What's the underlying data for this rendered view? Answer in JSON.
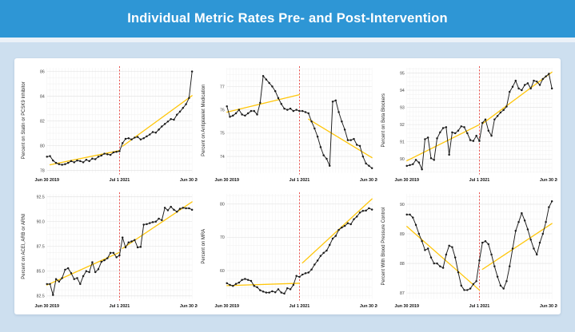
{
  "header": {
    "title": "Individual Metric Rates Pre- and Post-Intervention"
  },
  "colors": {
    "header_blue": "#2E96D5",
    "page_background": "#CDDFEF",
    "panel_background": "#FFFFFF",
    "data_line": "#1A1A1A",
    "trend_line": "#FFC60A",
    "intervention_line": "#E8433E",
    "grid_minor": "#EFEFEF",
    "grid_major": "#E0E0E0"
  },
  "chart_data": [
    {
      "type": "line",
      "name": "statin-pcsk9",
      "ylabel": "Percent on Statin or PCSK9 Inhibitor",
      "ylim": [
        77.8,
        86.3
      ],
      "yticks": [
        {
          "v": 78,
          "label": "78"
        },
        {
          "v": 80,
          "label": "80"
        },
        {
          "v": 82,
          "label": "82"
        },
        {
          "v": 84,
          "label": "84"
        },
        {
          "v": 86,
          "label": "86"
        }
      ],
      "xticks": [
        {
          "i": 0,
          "label": "Jun 30 2019"
        },
        {
          "i": 24,
          "label": "Jul 1 2021"
        },
        {
          "i": 48,
          "label": "Jun 30 2023"
        }
      ],
      "vline_index": 24,
      "values": [
        79.1,
        79.15,
        78.8,
        78.6,
        78.5,
        78.45,
        78.5,
        78.6,
        78.75,
        78.65,
        78.8,
        78.75,
        78.65,
        78.85,
        78.75,
        78.95,
        78.9,
        79.1,
        79.2,
        79.35,
        79.3,
        79.25,
        79.45,
        79.5,
        79.55,
        80.2,
        80.55,
        80.6,
        80.5,
        80.65,
        80.7,
        80.5,
        80.6,
        80.75,
        80.9,
        81.1,
        81.05,
        81.3,
        81.55,
        81.75,
        81.95,
        82.15,
        82.1,
        82.5,
        82.75,
        83.05,
        83.35,
        83.85,
        86.0
      ],
      "trend_pre": [
        1,
        78.45,
        24,
        79.6
      ],
      "trend_post": [
        25,
        79.95,
        48,
        84.05
      ]
    },
    {
      "type": "line",
      "name": "antiplatelet",
      "ylabel": "Percent on Antiplatelet Medication",
      "ylim": [
        73.3,
        77.8
      ],
      "yticks": [
        {
          "v": 74,
          "label": "74"
        },
        {
          "v": 75,
          "label": "75"
        },
        {
          "v": 76,
          "label": "76"
        },
        {
          "v": 77,
          "label": "77"
        }
      ],
      "xticks": [
        {
          "i": 0,
          "label": "Jun 30 2019"
        },
        {
          "i": 24,
          "label": "Jul 1 2021"
        },
        {
          "i": 48,
          "label": "Jun 30 2023"
        }
      ],
      "vline_index": 24,
      "values": [
        76.15,
        75.7,
        75.75,
        75.85,
        76.0,
        75.8,
        75.75,
        75.85,
        75.95,
        75.95,
        75.8,
        76.3,
        77.45,
        77.3,
        77.15,
        77.0,
        76.8,
        76.5,
        76.25,
        76.05,
        76.0,
        76.05,
        75.95,
        76.0,
        75.95,
        75.95,
        75.9,
        75.85,
        75.5,
        75.2,
        74.85,
        74.4,
        74.05,
        73.9,
        73.6,
        76.35,
        76.4,
        75.9,
        75.5,
        75.15,
        74.7,
        74.7,
        74.75,
        74.5,
        74.45,
        74.0,
        73.7,
        73.6,
        73.5
      ],
      "trend_pre": [
        0,
        75.9,
        24,
        76.65
      ],
      "trend_post": [
        27,
        75.6,
        48,
        73.95
      ]
    },
    {
      "type": "line",
      "name": "beta-blockers",
      "ylabel": "Percent on Beta Blockers",
      "ylim": [
        89.2,
        95.3
      ],
      "yticks": [
        {
          "v": 90,
          "label": "90"
        },
        {
          "v": 91,
          "label": "91"
        },
        {
          "v": 92,
          "label": "92"
        },
        {
          "v": 93,
          "label": "93"
        },
        {
          "v": 94,
          "label": "94"
        },
        {
          "v": 95,
          "label": "95"
        }
      ],
      "xticks": [
        {
          "i": 0,
          "label": "Jun 30 2019"
        },
        {
          "i": 24,
          "label": "Jul 1 2021"
        },
        {
          "i": 48,
          "label": "Jun 30 2023"
        }
      ],
      "vline_index": 24,
      "values": [
        89.6,
        89.65,
        89.7,
        89.95,
        89.8,
        89.4,
        91.15,
        91.25,
        90.05,
        89.95,
        91.2,
        91.55,
        91.8,
        91.85,
        90.25,
        91.55,
        91.5,
        91.65,
        91.9,
        91.85,
        91.5,
        91.1,
        91.05,
        91.35,
        91.05,
        92.1,
        92.3,
        91.65,
        91.35,
        92.3,
        92.5,
        92.7,
        92.85,
        93.05,
        93.9,
        94.2,
        94.55,
        94.1,
        94.0,
        94.3,
        94.4,
        94.1,
        94.55,
        94.5,
        94.3,
        94.65,
        94.8,
        94.95,
        94.1
      ],
      "trend_pre": [
        0,
        89.9,
        24,
        92.0
      ],
      "trend_post": [
        25,
        92.05,
        48,
        95.05
      ]
    },
    {
      "type": "line",
      "name": "acei-arb-arni",
      "ylabel": "Percent on ACEI, ARB or ARNI",
      "ylim": [
        82.2,
        92.8
      ],
      "yticks": [
        {
          "v": 82.5,
          "label": "82.5"
        },
        {
          "v": 85,
          "label": "85.0"
        },
        {
          "v": 87.5,
          "label": "87.5"
        },
        {
          "v": 90,
          "label": "90.0"
        },
        {
          "v": 92.5,
          "label": "92.5"
        }
      ],
      "xticks": [
        {
          "i": 0,
          "label": "Jun 30 2019"
        },
        {
          "i": 24,
          "label": "Jul 1 2021"
        },
        {
          "i": 48,
          "label": "Jun 30 2023"
        }
      ],
      "vline_index": 24,
      "values": [
        83.7,
        83.7,
        82.6,
        84.2,
        83.95,
        84.3,
        85.15,
        85.3,
        84.8,
        84.2,
        84.3,
        83.7,
        84.5,
        85.0,
        84.9,
        85.9,
        84.9,
        85.2,
        85.95,
        86.1,
        86.3,
        86.85,
        86.85,
        86.4,
        86.6,
        88.4,
        87.4,
        87.9,
        88.0,
        88.15,
        87.4,
        87.45,
        89.7,
        89.75,
        89.85,
        89.95,
        90.0,
        90.3,
        90.15,
        91.4,
        91.15,
        91.5,
        91.2,
        91.0,
        91.3,
        91.4,
        91.35,
        91.35,
        91.2
      ],
      "trend_pre": [
        0,
        83.6,
        24,
        86.9
      ],
      "trend_post": [
        25,
        87.3,
        48,
        92.0
      ]
    },
    {
      "type": "line",
      "name": "mra",
      "ylabel": "Percent on MRA",
      "ylim": [
        51.5,
        83.0
      ],
      "yticks": [
        {
          "v": 60,
          "label": "60"
        },
        {
          "v": 70,
          "label": "70"
        },
        {
          "v": 80,
          "label": "80"
        }
      ],
      "xticks": [
        {
          "i": 0,
          "label": "Jun 30 2019"
        },
        {
          "i": 24,
          "label": "Jul 1 2021"
        },
        {
          "i": 48,
          "label": "Jun 30 2023"
        }
      ],
      "vline_index": 24,
      "values": [
        56.2,
        55.7,
        55.4,
        56.0,
        56.4,
        57.2,
        57.5,
        57.2,
        56.9,
        55.4,
        55.0,
        54.1,
        53.7,
        53.4,
        53.4,
        53.8,
        53.5,
        54.4,
        53.4,
        53.1,
        54.7,
        54.4,
        55.7,
        58.4,
        58.1,
        58.8,
        59.2,
        59.4,
        60.3,
        61.8,
        63.0,
        64.4,
        65.3,
        66.0,
        67.7,
        69.6,
        70.4,
        72.2,
        72.9,
        73.4,
        74.2,
        73.9,
        75.4,
        76.2,
        77.4,
        77.9,
        78.0,
        78.7,
        78.3
      ],
      "trend_pre": [
        0,
        55.5,
        24,
        56.2
      ],
      "trend_post": [
        25,
        62.3,
        48,
        81.5
      ]
    },
    {
      "type": "line",
      "name": "blood-pressure-control",
      "ylabel": "Percent With Blood Pressure Control",
      "ylim": [
        86.8,
        90.35
      ],
      "yticks": [
        {
          "v": 87,
          "label": "87"
        },
        {
          "v": 88,
          "label": "88"
        },
        {
          "v": 89,
          "label": "89"
        },
        {
          "v": 90,
          "label": "90"
        }
      ],
      "xticks": [
        {
          "i": 0,
          "label": "Jun 30 2019"
        },
        {
          "i": 24,
          "label": "Jul 1 2021"
        },
        {
          "i": 48,
          "label": "Jun 30 2023"
        }
      ],
      "vline_index": 24,
      "values": [
        89.65,
        89.65,
        89.55,
        89.3,
        89.0,
        88.75,
        88.45,
        88.5,
        88.2,
        88.0,
        88.0,
        87.9,
        87.85,
        88.3,
        88.6,
        88.55,
        88.2,
        87.7,
        87.25,
        87.1,
        87.1,
        87.15,
        87.3,
        87.4,
        88.1,
        88.7,
        88.75,
        88.65,
        88.3,
        87.9,
        87.55,
        87.25,
        87.15,
        87.4,
        87.9,
        88.5,
        89.1,
        89.4,
        89.7,
        89.45,
        89.15,
        88.8,
        88.5,
        88.3,
        88.7,
        89.0,
        89.4,
        89.9,
        90.1
      ],
      "trend_pre": [
        0,
        89.25,
        24,
        87.1
      ],
      "trend_post": [
        25,
        87.8,
        48,
        89.35
      ]
    }
  ]
}
